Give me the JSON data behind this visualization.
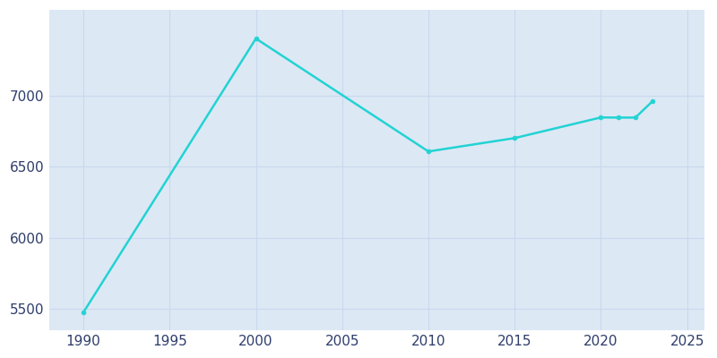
{
  "years": [
    1990,
    2000,
    2010,
    2015,
    2020,
    2021,
    2022,
    2023
  ],
  "population": [
    5476,
    7399,
    6606,
    6700,
    6845,
    6844,
    6844,
    6960
  ],
  "line_color": "#22d3d3",
  "marker_color": "#22d3d3",
  "background_color": "#ffffff",
  "plot_background": "#dde8f5",
  "grid_color": "#c8d8ec",
  "xlim": [
    1988,
    2026
  ],
  "ylim": [
    5350,
    7600
  ],
  "yticks": [
    5500,
    6000,
    6500,
    7000
  ],
  "xticks": [
    1990,
    1995,
    2000,
    2005,
    2010,
    2015,
    2020,
    2025
  ],
  "tick_color": "#2e3d6b",
  "tick_fontsize": 11
}
